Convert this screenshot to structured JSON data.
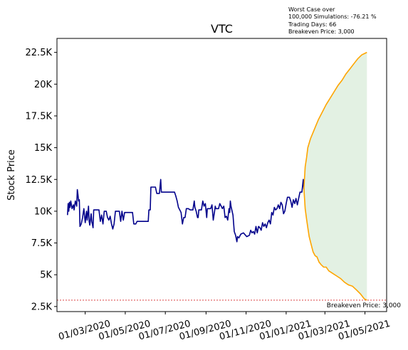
{
  "chart_data": {
    "type": "line",
    "title": "VTC",
    "xlabel": "",
    "ylabel": "Stock Price",
    "annotation": {
      "line1": "Worst Case over",
      "line2": "100,000 Simulations: -76.21 %",
      "line3": "Trading Days: 66",
      "line4": "Breakeven Price: 3,000"
    },
    "breakeven": {
      "value": 3000,
      "label": "Breakeven Price: 3,000",
      "color": "#d62728"
    },
    "x_range": [
      "2020-01-18",
      "2021-06-03"
    ],
    "ylim": [
      2100,
      23600
    ],
    "y_ticks": [
      {
        "value": 2500,
        "label": "2.5K"
      },
      {
        "value": 5000,
        "label": "5K"
      },
      {
        "value": 7500,
        "label": "7.5K"
      },
      {
        "value": 10000,
        "label": "10K"
      },
      {
        "value": 12500,
        "label": "12.5K"
      },
      {
        "value": 15000,
        "label": "15K"
      },
      {
        "value": 17500,
        "label": "17.5K"
      },
      {
        "value": 20000,
        "label": "20K"
      },
      {
        "value": 22500,
        "label": "22.5K"
      }
    ],
    "x_ticks": [
      {
        "date": "2020-03-01",
        "label": "01/03/2020"
      },
      {
        "date": "2020-05-01",
        "label": "01/05/2020"
      },
      {
        "date": "2020-07-01",
        "label": "01/07/2020"
      },
      {
        "date": "2020-09-01",
        "label": "01/09/2020"
      },
      {
        "date": "2020-11-01",
        "label": "01/11/2020"
      },
      {
        "date": "2021-01-01",
        "label": "01/01/2021"
      },
      {
        "date": "2021-03-01",
        "label": "01/03/2021"
      },
      {
        "date": "2021-05-01",
        "label": "01/05/2021"
      }
    ],
    "series": [
      {
        "color": "#00008b",
        "points": [
          [
            "2020-02-03",
            9700
          ],
          [
            "2020-02-04",
            10600
          ],
          [
            "2020-02-05",
            10000
          ],
          [
            "2020-02-06",
            10700
          ],
          [
            "2020-02-07",
            10300
          ],
          [
            "2020-02-08",
            10800
          ],
          [
            "2020-02-10",
            10200
          ],
          [
            "2020-02-12",
            10500
          ],
          [
            "2020-02-13",
            10100
          ],
          [
            "2020-02-15",
            10800
          ],
          [
            "2020-02-17",
            10400
          ],
          [
            "2020-02-18",
            11700
          ],
          [
            "2020-02-19",
            11300
          ],
          [
            "2020-02-20",
            10800
          ],
          [
            "2020-02-21",
            10900
          ],
          [
            "2020-02-22",
            8800
          ],
          [
            "2020-02-24",
            9000
          ],
          [
            "2020-02-26",
            9500
          ],
          [
            "2020-02-28",
            10200
          ],
          [
            "2020-03-01",
            9100
          ],
          [
            "2020-03-03",
            10000
          ],
          [
            "2020-03-04",
            9300
          ],
          [
            "2020-03-06",
            10400
          ],
          [
            "2020-03-07",
            9200
          ],
          [
            "2020-03-08",
            8900
          ],
          [
            "2020-03-10",
            9800
          ],
          [
            "2020-03-11",
            9200
          ],
          [
            "2020-03-13",
            8700
          ],
          [
            "2020-03-14",
            10100
          ],
          [
            "2020-03-20",
            10100
          ],
          [
            "2020-03-22",
            10100
          ],
          [
            "2020-03-24",
            9200
          ],
          [
            "2020-03-26",
            9700
          ],
          [
            "2020-03-28",
            9000
          ],
          [
            "2020-03-30",
            10000
          ],
          [
            "2020-04-02",
            10000
          ],
          [
            "2020-04-04",
            9500
          ],
          [
            "2020-04-06",
            9300
          ],
          [
            "2020-04-08",
            9600
          ],
          [
            "2020-04-10",
            9000
          ],
          [
            "2020-04-12",
            8600
          ],
          [
            "2020-04-14",
            9000
          ],
          [
            "2020-04-16",
            10000
          ],
          [
            "2020-04-22",
            10000
          ],
          [
            "2020-04-24",
            9200
          ],
          [
            "2020-04-26",
            10000
          ],
          [
            "2020-04-28",
            9300
          ],
          [
            "2020-04-30",
            9900
          ],
          [
            "2020-05-12",
            9900
          ],
          [
            "2020-05-14",
            9000
          ],
          [
            "2020-05-17",
            9000
          ],
          [
            "2020-05-19",
            9200
          ],
          [
            "2020-06-05",
            9200
          ],
          [
            "2020-06-06",
            10100
          ],
          [
            "2020-06-08",
            10100
          ],
          [
            "2020-06-09",
            11900
          ],
          [
            "2020-06-16",
            11900
          ],
          [
            "2020-06-18",
            11400
          ],
          [
            "2020-06-22",
            11400
          ],
          [
            "2020-06-24",
            12500
          ],
          [
            "2020-06-25",
            11500
          ],
          [
            "2020-07-15",
            11500
          ],
          [
            "2020-07-17",
            11200
          ],
          [
            "2020-07-19",
            10800
          ],
          [
            "2020-07-21",
            10300
          ],
          [
            "2020-07-23",
            10100
          ],
          [
            "2020-07-25",
            9900
          ],
          [
            "2020-07-27",
            9000
          ],
          [
            "2020-07-29",
            9500
          ],
          [
            "2020-07-31",
            9500
          ],
          [
            "2020-08-02",
            10200
          ],
          [
            "2020-08-05",
            10200
          ],
          [
            "2020-08-08",
            10100
          ],
          [
            "2020-08-12",
            10100
          ],
          [
            "2020-08-14",
            10800
          ],
          [
            "2020-08-15",
            10300
          ],
          [
            "2020-08-17",
            10000
          ],
          [
            "2020-08-19",
            9500
          ],
          [
            "2020-08-20",
            9500
          ],
          [
            "2020-08-21",
            10100
          ],
          [
            "2020-08-25",
            10100
          ],
          [
            "2020-08-27",
            10800
          ],
          [
            "2020-08-29",
            10400
          ],
          [
            "2020-08-31",
            10600
          ],
          [
            "2020-09-02",
            9500
          ],
          [
            "2020-09-03",
            10200
          ],
          [
            "2020-09-08",
            10200
          ],
          [
            "2020-09-10",
            10500
          ],
          [
            "2020-09-12",
            9300
          ],
          [
            "2020-09-14",
            10000
          ],
          [
            "2020-09-15",
            10400
          ],
          [
            "2020-09-16",
            10200
          ],
          [
            "2020-09-20",
            10200
          ],
          [
            "2020-09-22",
            10600
          ],
          [
            "2020-09-24",
            10400
          ],
          [
            "2020-09-26",
            10200
          ],
          [
            "2020-09-28",
            10400
          ],
          [
            "2020-09-30",
            9500
          ],
          [
            "2020-10-02",
            9600
          ],
          [
            "2020-10-04",
            9300
          ],
          [
            "2020-10-06",
            10200
          ],
          [
            "2020-10-07",
            9900
          ],
          [
            "2020-10-08",
            10800
          ],
          [
            "2020-10-09",
            10400
          ],
          [
            "2020-10-12",
            9700
          ],
          [
            "2020-10-14",
            8400
          ],
          [
            "2020-10-16",
            8100
          ],
          [
            "2020-10-18",
            7600
          ],
          [
            "2020-10-19",
            8000
          ],
          [
            "2020-10-21",
            7900
          ],
          [
            "2020-10-24",
            8200
          ],
          [
            "2020-10-28",
            8300
          ],
          [
            "2020-11-02",
            8000
          ],
          [
            "2020-11-06",
            8100
          ],
          [
            "2020-11-08",
            8500
          ],
          [
            "2020-11-10",
            8300
          ],
          [
            "2020-11-12",
            8400
          ],
          [
            "2020-11-14",
            8200
          ],
          [
            "2020-11-16",
            8800
          ],
          [
            "2020-11-18",
            8300
          ],
          [
            "2020-11-20",
            8800
          ],
          [
            "2020-11-22",
            8700
          ],
          [
            "2020-11-24",
            8500
          ],
          [
            "2020-11-26",
            9100
          ],
          [
            "2020-11-28",
            8800
          ],
          [
            "2020-11-30",
            9000
          ],
          [
            "2020-12-02",
            8700
          ],
          [
            "2020-12-04",
            9100
          ],
          [
            "2020-12-06",
            9300
          ],
          [
            "2020-12-08",
            9000
          ],
          [
            "2020-12-10",
            9900
          ],
          [
            "2020-12-12",
            9700
          ],
          [
            "2020-12-14",
            10300
          ],
          [
            "2020-12-16",
            10100
          ],
          [
            "2020-12-18",
            10200
          ],
          [
            "2020-12-20",
            10500
          ],
          [
            "2020-12-22",
            10200
          ],
          [
            "2020-12-24",
            10700
          ],
          [
            "2020-12-26",
            10500
          ],
          [
            "2020-12-28",
            9800
          ],
          [
            "2020-12-30",
            10000
          ],
          [
            "2021-01-01",
            10600
          ],
          [
            "2021-01-03",
            11100
          ],
          [
            "2021-01-06",
            11100
          ],
          [
            "2021-01-08",
            10800
          ],
          [
            "2021-01-10",
            10300
          ],
          [
            "2021-01-12",
            10900
          ],
          [
            "2021-01-14",
            10600
          ],
          [
            "2021-01-16",
            11000
          ],
          [
            "2021-01-18",
            10500
          ],
          [
            "2021-01-20",
            11000
          ],
          [
            "2021-01-22",
            11500
          ],
          [
            "2021-01-25",
            11500
          ],
          [
            "2021-01-27",
            12500
          ],
          [
            "2021-01-28",
            11700
          ]
        ]
      }
    ],
    "simulation": {
      "color": "#ffa500",
      "fill_color": "#e3f1e3",
      "upper": [
        [
          "2021-01-28",
          11800
        ],
        [
          "2021-01-30",
          13500
        ],
        [
          "2021-02-01",
          14200
        ],
        [
          "2021-02-03",
          15000
        ],
        [
          "2021-02-07",
          15700
        ],
        [
          "2021-02-11",
          16200
        ],
        [
          "2021-02-15",
          16700
        ],
        [
          "2021-02-19",
          17200
        ],
        [
          "2021-02-25",
          17800
        ],
        [
          "2021-03-03",
          18400
        ],
        [
          "2021-03-09",
          18900
        ],
        [
          "2021-03-15",
          19400
        ],
        [
          "2021-03-21",
          19900
        ],
        [
          "2021-03-27",
          20300
        ],
        [
          "2021-04-02",
          20800
        ],
        [
          "2021-04-08",
          21200
        ],
        [
          "2021-04-14",
          21600
        ],
        [
          "2021-04-20",
          22000
        ],
        [
          "2021-04-26",
          22300
        ],
        [
          "2021-05-04",
          22500
        ]
      ],
      "lower": [
        [
          "2021-01-28",
          11800
        ],
        [
          "2021-01-30",
          10200
        ],
        [
          "2021-02-01",
          9400
        ],
        [
          "2021-02-03",
          8700
        ],
        [
          "2021-02-05",
          8000
        ],
        [
          "2021-02-08",
          7400
        ],
        [
          "2021-02-11",
          6800
        ],
        [
          "2021-02-14",
          6500
        ],
        [
          "2021-02-17",
          6400
        ],
        [
          "2021-02-20",
          6000
        ],
        [
          "2021-02-23",
          5800
        ],
        [
          "2021-02-27",
          5600
        ],
        [
          "2021-03-03",
          5600
        ],
        [
          "2021-03-07",
          5300
        ],
        [
          "2021-03-13",
          5100
        ],
        [
          "2021-03-19",
          4900
        ],
        [
          "2021-03-25",
          4700
        ],
        [
          "2021-03-31",
          4400
        ],
        [
          "2021-04-06",
          4200
        ],
        [
          "2021-04-12",
          4100
        ],
        [
          "2021-04-18",
          3800
        ],
        [
          "2021-04-24",
          3500
        ],
        [
          "2021-04-30",
          3100
        ],
        [
          "2021-05-04",
          3000
        ]
      ]
    }
  }
}
